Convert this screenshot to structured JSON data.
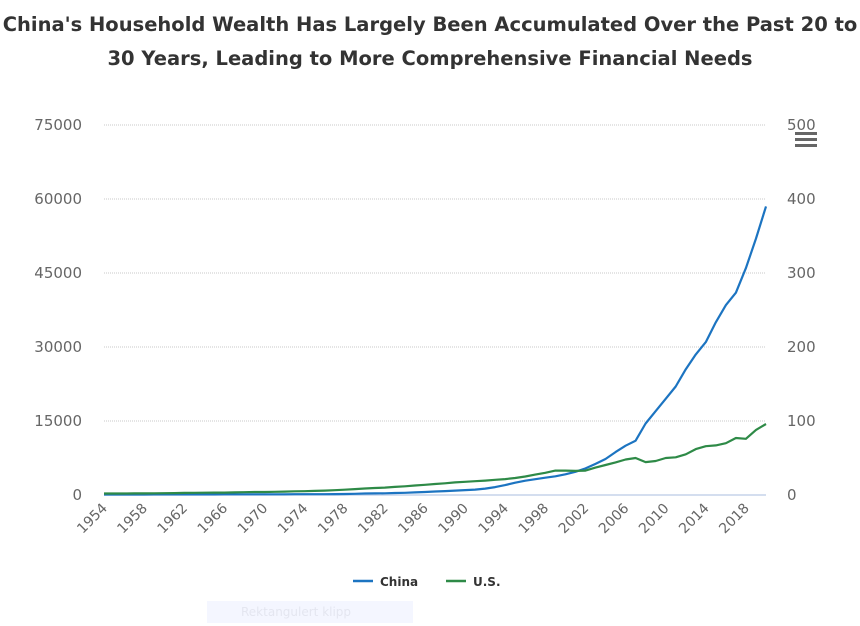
{
  "chart_data": {
    "type": "line",
    "title": "China's Household Wealth Has Largely Been Accumulated Over the Past 20 to 30 Years, Leading to More Comprehensive Financial Needs",
    "x_start": 1954,
    "x_end": 2020,
    "x_tick_labels": [
      "1954",
      "1958",
      "1962",
      "1966",
      "1970",
      "1974",
      "1978",
      "1982",
      "1986",
      "1990",
      "1994",
      "1998",
      "2002",
      "2006",
      "2010",
      "2014",
      "2018"
    ],
    "y_left": {
      "range": [
        0,
        75000
      ],
      "ticks": [
        "0",
        "15000",
        "30000",
        "45000",
        "60000",
        "75000"
      ]
    },
    "y_right": {
      "range": [
        0,
        500
      ],
      "ticks": [
        "0",
        "100",
        "200",
        "300",
        "400",
        "500"
      ]
    },
    "grid": true,
    "legend_position": "bottom",
    "series": [
      {
        "name": "China",
        "axis": "left",
        "color": "#1c74c1",
        "values": [
          100,
          100,
          105,
          110,
          110,
          115,
          120,
          120,
          125,
          125,
          130,
          130,
          135,
          135,
          140,
          140,
          145,
          150,
          150,
          155,
          160,
          165,
          170,
          185,
          200,
          240,
          300,
          320,
          350,
          400,
          450,
          520,
          600,
          700,
          800,
          900,
          1000,
          1100,
          1300,
          1600,
          2000,
          2500,
          2900,
          3200,
          3500,
          3800,
          4200,
          4700,
          5400,
          6300,
          7300,
          8700,
          10000,
          11000,
          14500,
          17000,
          19500,
          22000,
          25500,
          28500,
          31000,
          35000,
          38500,
          41000,
          46000,
          52000,
          58500
        ]
      },
      {
        "name": "U.S.",
        "axis": "right",
        "color": "#2e8a47",
        "values": [
          2,
          2,
          2,
          2.1,
          2.2,
          2.3,
          2.4,
          2.6,
          2.8,
          3,
          3.1,
          3.2,
          3.3,
          3.5,
          3.8,
          4,
          4.1,
          4.3,
          4.6,
          5,
          5.2,
          5.5,
          6,
          6.5,
          7.2,
          8,
          8.8,
          9.5,
          10,
          11,
          11.8,
          12.8,
          13.8,
          14.8,
          15.8,
          17,
          17.8,
          18.6,
          19.5,
          20.5,
          21.5,
          23,
          25,
          27.5,
          30,
          33,
          33,
          32.5,
          33,
          37,
          40.5,
          44,
          48,
          50,
          44.5,
          46,
          50,
          51,
          55,
          62,
          66,
          67,
          70,
          77,
          76,
          88,
          96
        ]
      }
    ]
  },
  "menu_icon": "hamburger-menu-icon",
  "watermark": "Rektangulert klipp"
}
